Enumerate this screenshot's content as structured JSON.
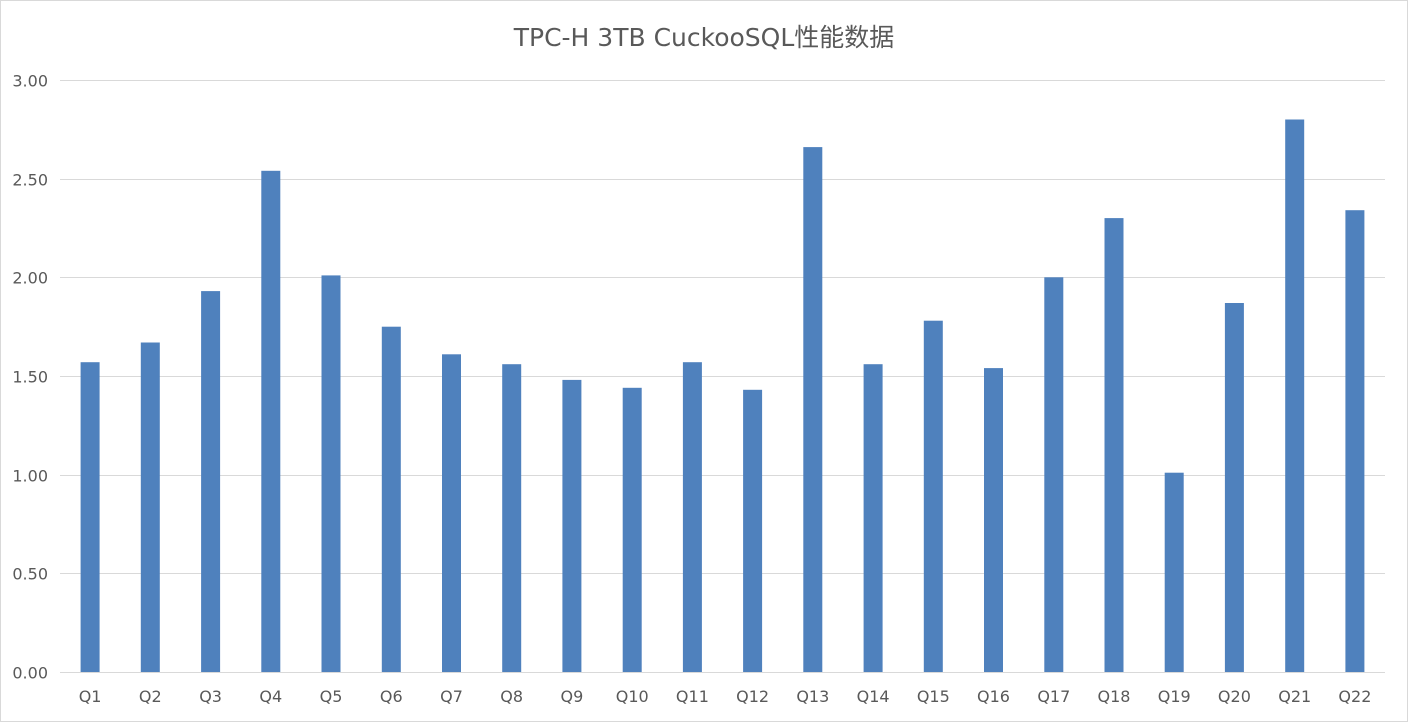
{
  "chart_data": {
    "type": "bar",
    "title": "TPC-H 3TB CuckooSQL性能数据",
    "xlabel": "",
    "ylabel": "",
    "categories": [
      "Q1",
      "Q2",
      "Q3",
      "Q4",
      "Q5",
      "Q6",
      "Q7",
      "Q8",
      "Q9",
      "Q10",
      "Q11",
      "Q12",
      "Q13",
      "Q14",
      "Q15",
      "Q16",
      "Q17",
      "Q18",
      "Q19",
      "Q20",
      "Q21",
      "Q22"
    ],
    "values": [
      1.57,
      1.67,
      1.93,
      2.54,
      2.01,
      1.75,
      1.61,
      1.56,
      1.48,
      1.44,
      1.57,
      1.43,
      2.66,
      1.56,
      1.78,
      1.54,
      2.0,
      2.3,
      1.01,
      1.87,
      2.8,
      2.34
    ],
    "ylim": [
      0,
      3
    ],
    "yticks": [
      "0.00",
      "0.50",
      "1.00",
      "1.50",
      "2.00",
      "2.50",
      "3.00"
    ],
    "ytick_values": [
      0,
      0.5,
      1,
      1.5,
      2,
      2.5,
      3
    ],
    "grid": true,
    "legend": "none",
    "bar_color": "#4f81bd",
    "grid_color": "#d9d9d9",
    "text_color": "#595959"
  }
}
